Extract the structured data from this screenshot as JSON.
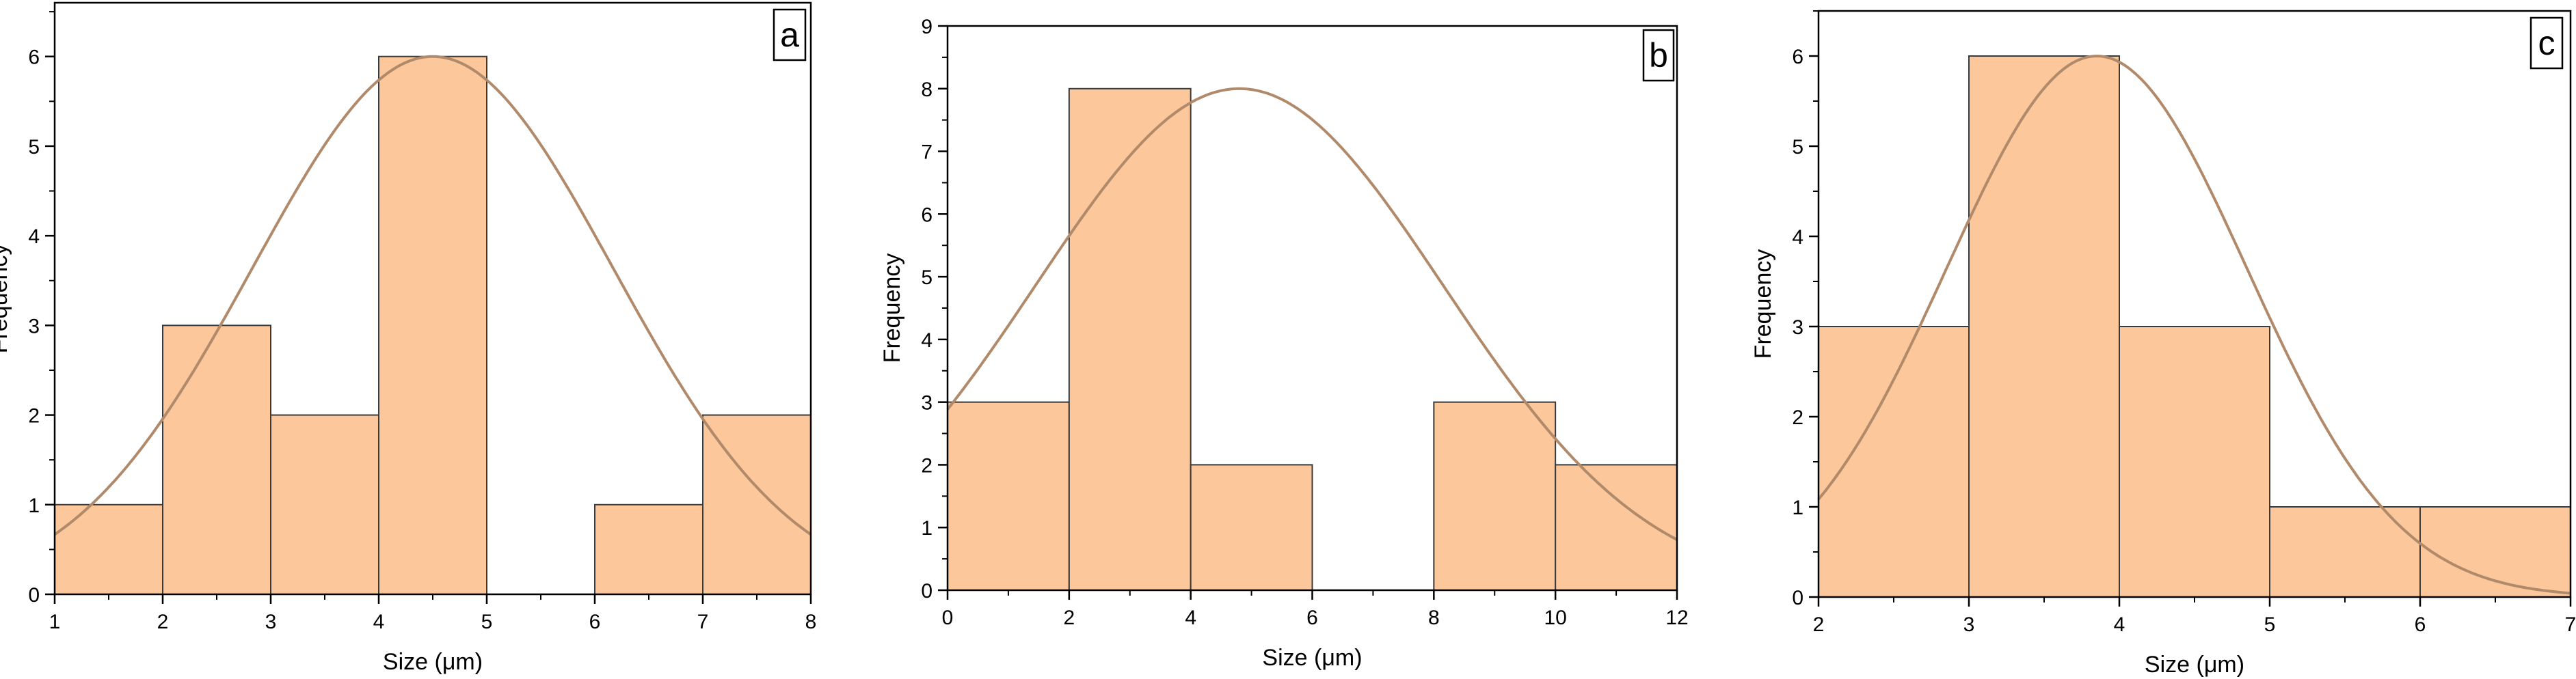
{
  "colors": {
    "bar_fill": "#fcc79a",
    "bar_stroke": "#3a3a3a",
    "curve": "#b08a6a",
    "axis": "#000000"
  },
  "chart_data": [
    {
      "type": "bar",
      "panel_label": "a",
      "xlabel": "Size (μm)",
      "ylabel": "Frequency",
      "xlim": [
        1,
        8
      ],
      "ylim": [
        0,
        6.6
      ],
      "xticks": [
        1,
        2,
        3,
        4,
        5,
        6,
        7,
        8
      ],
      "yticks": [
        0,
        1,
        2,
        3,
        4,
        5,
        6
      ],
      "bins": [
        [
          1,
          2
        ],
        [
          2,
          3
        ],
        [
          3,
          4
        ],
        [
          4,
          5
        ],
        [
          5,
          6
        ],
        [
          6,
          7
        ],
        [
          7,
          8
        ]
      ],
      "values": [
        1,
        3,
        2,
        6,
        0,
        1,
        2
      ],
      "fit_curve": {
        "type": "normal",
        "mean": 4.5,
        "sd": 1.67,
        "peak": 6.0
      },
      "grid": false
    },
    {
      "type": "bar",
      "panel_label": "b",
      "xlabel": "Size (μm)",
      "ylabel": "Frequency",
      "xlim": [
        0,
        12
      ],
      "ylim": [
        0,
        9
      ],
      "xticks": [
        0,
        2,
        4,
        6,
        8,
        10,
        12
      ],
      "yticks": [
        0,
        1,
        2,
        3,
        4,
        5,
        6,
        7,
        8,
        9
      ],
      "bins": [
        [
          0,
          2
        ],
        [
          2,
          4
        ],
        [
          4,
          6
        ],
        [
          6,
          8
        ],
        [
          8,
          10
        ],
        [
          10,
          12
        ]
      ],
      "values": [
        3,
        8,
        2,
        0,
        3,
        2
      ],
      "fit_curve": {
        "type": "normal",
        "mean": 4.8,
        "sd": 3.36,
        "peak": 8.0
      },
      "grid": false
    },
    {
      "type": "bar",
      "panel_label": "c",
      "xlabel": "Size (μm)",
      "ylabel": "Frequency",
      "xlim": [
        2,
        7
      ],
      "ylim": [
        0,
        6.5
      ],
      "xticks": [
        2,
        3,
        4,
        5,
        6,
        7
      ],
      "yticks": [
        0,
        1,
        2,
        3,
        4,
        5,
        6
      ],
      "bins": [
        [
          2,
          3
        ],
        [
          3,
          4
        ],
        [
          4,
          5
        ],
        [
          5,
          6
        ],
        [
          6,
          7
        ]
      ],
      "values": [
        3,
        6,
        3,
        1,
        1
      ],
      "fit_curve": {
        "type": "normal",
        "mean": 3.85,
        "sd": 1.0,
        "peak": 6.0
      },
      "grid": false
    }
  ]
}
